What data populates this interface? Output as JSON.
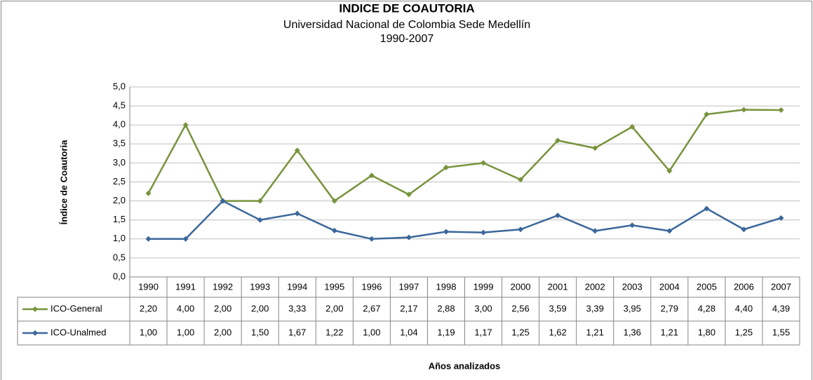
{
  "chart_data": {
    "type": "line",
    "title": "INDICE DE COAUTORIA",
    "subtitle": "Universidad Nacional de Colombia Sede Medellín",
    "subtitle2": "1990-2007",
    "y_label": "Índice de Coautoria",
    "x_label": "Años analizados",
    "categories": [
      "1990",
      "1991",
      "1992",
      "1993",
      "1994",
      "1995",
      "1996",
      "1997",
      "1998",
      "1999",
      "2000",
      "2001",
      "2002",
      "2003",
      "2004",
      "2005",
      "2006",
      "2007"
    ],
    "series": [
      {
        "name": "ICO-General",
        "color": "#77933c",
        "values": [
          2.2,
          4.0,
          2.0,
          2.0,
          3.33,
          2.0,
          2.67,
          2.17,
          2.88,
          3.0,
          2.56,
          3.59,
          3.39,
          3.95,
          2.79,
          4.28,
          4.4,
          4.39
        ],
        "value_labels": [
          "2,20",
          "4,00",
          "2,00",
          "2,00",
          "3,33",
          "2,00",
          "2,67",
          "2,17",
          "2,88",
          "3,00",
          "2,56",
          "3,59",
          "3,39",
          "3,95",
          "2,79",
          "4,28",
          "4,40",
          "4,39"
        ]
      },
      {
        "name": "ICO-Unalmed",
        "color": "#3a679a",
        "values": [
          1.0,
          1.0,
          2.0,
          1.5,
          1.67,
          1.22,
          1.0,
          1.04,
          1.19,
          1.17,
          1.25,
          1.62,
          1.21,
          1.36,
          1.21,
          1.8,
          1.25,
          1.55
        ],
        "value_labels": [
          "1,00",
          "1,00",
          "2,00",
          "1,50",
          "1,67",
          "1,22",
          "1,00",
          "1,04",
          "1,19",
          "1,17",
          "1,25",
          "1,62",
          "1,21",
          "1,36",
          "1,21",
          "1,80",
          "1,25",
          "1,55"
        ]
      }
    ],
    "ylim": [
      0,
      5
    ],
    "yticks": [
      {
        "value": 0,
        "label": "0,0"
      },
      {
        "value": 0.5,
        "label": "0,5"
      },
      {
        "value": 1,
        "label": "1,0"
      },
      {
        "value": 1.5,
        "label": "1,5"
      },
      {
        "value": 2,
        "label": "2,0"
      },
      {
        "value": 2.5,
        "label": "2,5"
      },
      {
        "value": 3,
        "label": "3,0"
      },
      {
        "value": 3.5,
        "label": "3,5"
      },
      {
        "value": 4,
        "label": "4,0"
      },
      {
        "value": 4.5,
        "label": "4,5"
      },
      {
        "value": 5,
        "label": "5,0"
      }
    ],
    "grid": true
  }
}
